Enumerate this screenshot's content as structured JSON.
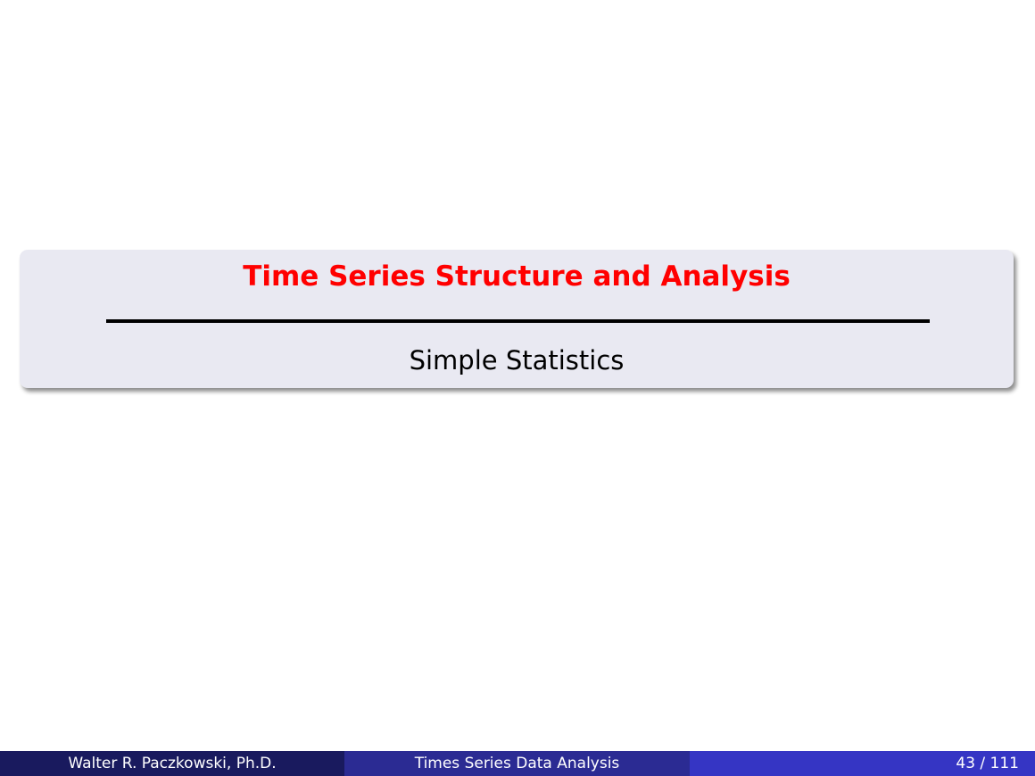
{
  "section": {
    "title": "Time Series Structure and Analysis",
    "subtitle": "Simple Statistics"
  },
  "footer": {
    "author": "Walter R. Paczkowski, Ph.D.",
    "presentation_title": "Times Series Data Analysis",
    "page_number": "43 / 111"
  },
  "colors": {
    "title": "#ff0000",
    "box_background": "#e9e9f2",
    "footer_left": "#191a5e",
    "footer_middle": "#2b2b93",
    "footer_right": "#3535c4"
  }
}
